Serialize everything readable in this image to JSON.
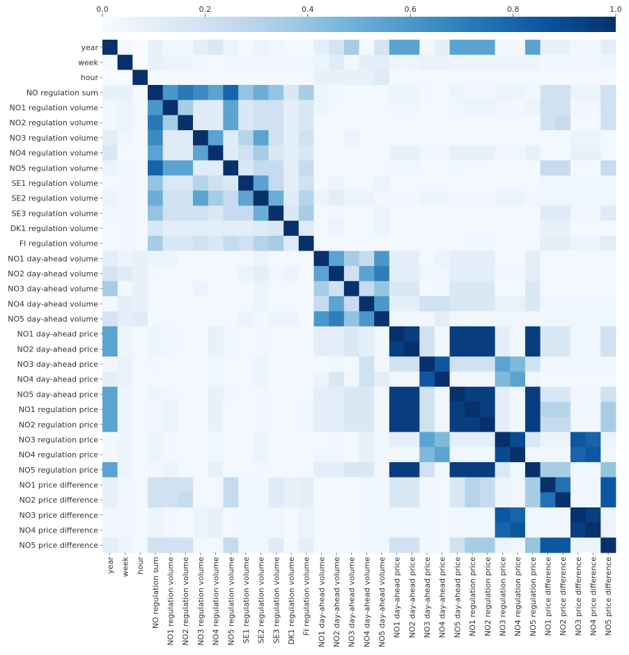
{
  "chart_data": {
    "type": "heatmap",
    "title": "",
    "xlabel": "",
    "ylabel": "",
    "labels": [
      "year",
      "week",
      "hour",
      "NO regulation sum",
      "NO1 regulation volume",
      "NO2 regulation volume",
      "NO3 regulation volume",
      "NO4 regulation volume",
      "NO5 regulation volume",
      "SE1 regulation volume",
      "SE2 regulation volume",
      "SE3 regulation volume",
      "DK1 regulation volume",
      "FI regulation volume",
      "NO1 day-ahead volume",
      "NO2 day-ahead volume",
      "NO3 day-ahead volume",
      "NO4 day-ahead volume",
      "NO5 day-ahead volume",
      "NO1 day-ahead price",
      "NO2 day-ahead price",
      "NO3 day-ahead price",
      "NO4 day-ahead price",
      "NO5 day-ahead price",
      "NO1 regulation price",
      "NO2 regulation price",
      "NO3 regulation price",
      "NO4 regulation price",
      "NO5 regulation price",
      "NO1 price difference",
      "NO2 price difference",
      "NO3 price difference",
      "NO4 price difference",
      "NO5 price difference"
    ],
    "colorbar": {
      "range": [
        0.0,
        1.0
      ],
      "ticks": [
        "0.0",
        "0.2",
        "0.4",
        "0.6",
        "0.8",
        "1.0"
      ],
      "colors": [
        "#f7fbff",
        "#deebf7",
        "#c6dbef",
        "#9ecae1",
        "#6baed6",
        "#4292c6",
        "#2171b5",
        "#08519c",
        "#08306b"
      ]
    },
    "values": [
      [
        1.0,
        0.02,
        0.0,
        0.08,
        0.03,
        0.03,
        0.1,
        0.15,
        0.06,
        0.02,
        0.06,
        0.04,
        0.02,
        0.02,
        0.1,
        0.18,
        0.35,
        0.02,
        0.18,
        0.55,
        0.55,
        0.03,
        0.1,
        0.55,
        0.55,
        0.55,
        0.03,
        0.03,
        0.55,
        0.08,
        0.08,
        0.03,
        0.03,
        0.1
      ],
      [
        0.02,
        1.0,
        0.0,
        0.08,
        0.06,
        0.06,
        0.04,
        0.02,
        0.04,
        0.03,
        0.03,
        0.03,
        0.03,
        0.03,
        0.05,
        0.12,
        0.03,
        0.1,
        0.1,
        0.05,
        0.05,
        0.07,
        0.07,
        0.05,
        0.05,
        0.05,
        0.05,
        0.05,
        0.05,
        0.03,
        0.03,
        0.03,
        0.03,
        0.05
      ],
      [
        0.0,
        0.0,
        1.0,
        0.02,
        0.02,
        0.02,
        0.02,
        0.02,
        0.02,
        0.02,
        0.02,
        0.02,
        0.02,
        0.02,
        0.08,
        0.08,
        0.08,
        0.08,
        0.12,
        0.02,
        0.02,
        0.02,
        0.02,
        0.02,
        0.02,
        0.02,
        0.02,
        0.02,
        0.02,
        0.02,
        0.02,
        0.02,
        0.02,
        0.02
      ],
      [
        0.08,
        0.08,
        0.02,
        1.0,
        0.6,
        0.72,
        0.65,
        0.55,
        0.8,
        0.4,
        0.5,
        0.4,
        0.15,
        0.35,
        0.05,
        0.03,
        0.02,
        0.02,
        0.02,
        0.05,
        0.05,
        0.03,
        0.02,
        0.05,
        0.03,
        0.03,
        0.06,
        0.05,
        0.03,
        0.2,
        0.2,
        0.06,
        0.06,
        0.2
      ],
      [
        0.03,
        0.06,
        0.02,
        0.6,
        1.0,
        0.35,
        0.12,
        0.12,
        0.55,
        0.15,
        0.2,
        0.2,
        0.1,
        0.15,
        0.05,
        0.02,
        0.02,
        0.02,
        0.02,
        0.04,
        0.04,
        0.02,
        0.02,
        0.04,
        0.06,
        0.06,
        0.03,
        0.03,
        0.06,
        0.2,
        0.2,
        0.03,
        0.03,
        0.2
      ],
      [
        0.03,
        0.06,
        0.02,
        0.72,
        0.35,
        1.0,
        0.12,
        0.12,
        0.55,
        0.15,
        0.2,
        0.2,
        0.1,
        0.15,
        0.02,
        0.02,
        0.02,
        0.02,
        0.02,
        0.02,
        0.02,
        0.02,
        0.02,
        0.02,
        0.02,
        0.02,
        0.02,
        0.02,
        0.02,
        0.2,
        0.25,
        0.02,
        0.02,
        0.2
      ],
      [
        0.1,
        0.04,
        0.02,
        0.65,
        0.12,
        0.12,
        1.0,
        0.55,
        0.12,
        0.3,
        0.55,
        0.2,
        0.1,
        0.2,
        0.02,
        0.02,
        0.06,
        0.02,
        0.02,
        0.02,
        0.02,
        0.02,
        0.02,
        0.02,
        0.02,
        0.02,
        0.02,
        0.02,
        0.02,
        0.02,
        0.02,
        0.06,
        0.06,
        0.02
      ],
      [
        0.15,
        0.02,
        0.02,
        0.55,
        0.12,
        0.12,
        0.55,
        1.0,
        0.12,
        0.2,
        0.35,
        0.15,
        0.1,
        0.15,
        0.02,
        0.02,
        0.02,
        0.02,
        0.02,
        0.08,
        0.08,
        0.04,
        0.04,
        0.08,
        0.08,
        0.08,
        0.04,
        0.04,
        0.08,
        0.02,
        0.02,
        0.08,
        0.08,
        0.02
      ],
      [
        0.06,
        0.04,
        0.02,
        0.8,
        0.55,
        0.55,
        0.12,
        0.12,
        1.0,
        0.15,
        0.25,
        0.25,
        0.1,
        0.25,
        0.02,
        0.02,
        0.02,
        0.02,
        0.02,
        0.04,
        0.04,
        0.02,
        0.02,
        0.04,
        0.02,
        0.02,
        0.02,
        0.02,
        0.02,
        0.25,
        0.25,
        0.02,
        0.02,
        0.25
      ],
      [
        0.02,
        0.03,
        0.02,
        0.4,
        0.15,
        0.15,
        0.3,
        0.2,
        0.15,
        1.0,
        0.55,
        0.25,
        0.1,
        0.2,
        0.02,
        0.06,
        0.02,
        0.02,
        0.06,
        0.02,
        0.02,
        0.02,
        0.02,
        0.02,
        0.02,
        0.02,
        0.02,
        0.02,
        0.02,
        0.04,
        0.04,
        0.04,
        0.04,
        0.04
      ],
      [
        0.06,
        0.03,
        0.02,
        0.5,
        0.2,
        0.2,
        0.55,
        0.35,
        0.25,
        0.55,
        1.0,
        0.5,
        0.12,
        0.3,
        0.06,
        0.1,
        0.06,
        0.06,
        0.03,
        0.03,
        0.03,
        0.05,
        0.05,
        0.03,
        0.03,
        0.03,
        0.06,
        0.06,
        0.03,
        0.04,
        0.04,
        0.04,
        0.04,
        0.04
      ],
      [
        0.04,
        0.03,
        0.02,
        0.4,
        0.2,
        0.2,
        0.2,
        0.15,
        0.25,
        0.25,
        0.5,
        1.0,
        0.15,
        0.35,
        0.02,
        0.04,
        0.02,
        0.02,
        0.06,
        0.02,
        0.02,
        0.02,
        0.02,
        0.02,
        0.02,
        0.02,
        0.02,
        0.02,
        0.02,
        0.12,
        0.12,
        0.04,
        0.04,
        0.12
      ],
      [
        0.02,
        0.03,
        0.02,
        0.15,
        0.1,
        0.1,
        0.1,
        0.1,
        0.1,
        0.1,
        0.12,
        0.15,
        1.0,
        0.12,
        0.02,
        0.06,
        0.02,
        0.02,
        0.06,
        0.02,
        0.02,
        0.02,
        0.02,
        0.02,
        0.02,
        0.02,
        0.02,
        0.02,
        0.02,
        0.08,
        0.08,
        0.02,
        0.02,
        0.02
      ],
      [
        0.02,
        0.03,
        0.02,
        0.35,
        0.15,
        0.15,
        0.2,
        0.15,
        0.25,
        0.2,
        0.3,
        0.35,
        0.12,
        1.0,
        0.02,
        0.02,
        0.02,
        0.02,
        0.02,
        0.02,
        0.02,
        0.02,
        0.02,
        0.02,
        0.04,
        0.04,
        0.02,
        0.02,
        0.02,
        0.1,
        0.1,
        0.06,
        0.06,
        0.1
      ],
      [
        0.1,
        0.05,
        0.08,
        0.05,
        0.05,
        0.02,
        0.02,
        0.02,
        0.02,
        0.02,
        0.06,
        0.02,
        0.02,
        0.02,
        1.0,
        0.55,
        0.35,
        0.25,
        0.6,
        0.1,
        0.1,
        0.02,
        0.06,
        0.1,
        0.1,
        0.1,
        0.02,
        0.02,
        0.1,
        0.02,
        0.02,
        0.02,
        0.02,
        0.02
      ],
      [
        0.18,
        0.12,
        0.08,
        0.03,
        0.02,
        0.02,
        0.02,
        0.02,
        0.02,
        0.06,
        0.1,
        0.04,
        0.06,
        0.02,
        0.55,
        1.0,
        0.2,
        0.55,
        0.7,
        0.1,
        0.1,
        0.04,
        0.04,
        0.1,
        0.1,
        0.1,
        0.04,
        0.04,
        0.1,
        0.02,
        0.02,
        0.02,
        0.02,
        0.02
      ],
      [
        0.35,
        0.03,
        0.08,
        0.02,
        0.02,
        0.02,
        0.06,
        0.02,
        0.02,
        0.02,
        0.06,
        0.02,
        0.02,
        0.02,
        0.35,
        0.2,
        1.0,
        0.25,
        0.4,
        0.15,
        0.15,
        0.02,
        0.04,
        0.15,
        0.15,
        0.15,
        0.02,
        0.02,
        0.15,
        0.02,
        0.02,
        0.02,
        0.02,
        0.02
      ],
      [
        0.02,
        0.1,
        0.08,
        0.02,
        0.02,
        0.02,
        0.02,
        0.02,
        0.02,
        0.02,
        0.06,
        0.02,
        0.02,
        0.02,
        0.25,
        0.55,
        0.25,
        1.0,
        0.6,
        0.1,
        0.1,
        0.2,
        0.2,
        0.15,
        0.15,
        0.15,
        0.08,
        0.08,
        0.15,
        0.04,
        0.04,
        0.04,
        0.04,
        0.04
      ],
      [
        0.18,
        0.1,
        0.12,
        0.02,
        0.02,
        0.02,
        0.02,
        0.02,
        0.02,
        0.06,
        0.03,
        0.06,
        0.06,
        0.02,
        0.6,
        0.7,
        0.4,
        0.6,
        1.0,
        0.04,
        0.04,
        0.04,
        0.1,
        0.04,
        0.04,
        0.04,
        0.04,
        0.04,
        0.04,
        0.04,
        0.04,
        0.04,
        0.04,
        0.04
      ],
      [
        0.55,
        0.05,
        0.02,
        0.05,
        0.04,
        0.02,
        0.02,
        0.08,
        0.04,
        0.02,
        0.03,
        0.02,
        0.02,
        0.02,
        0.1,
        0.1,
        0.15,
        0.1,
        0.04,
        1.0,
        0.95,
        0.2,
        0.04,
        0.95,
        0.95,
        0.95,
        0.1,
        0.04,
        0.95,
        0.15,
        0.15,
        0.04,
        0.04,
        0.2
      ],
      [
        0.55,
        0.05,
        0.02,
        0.05,
        0.04,
        0.02,
        0.02,
        0.08,
        0.04,
        0.02,
        0.03,
        0.02,
        0.02,
        0.02,
        0.1,
        0.1,
        0.15,
        0.1,
        0.04,
        0.95,
        1.0,
        0.2,
        0.04,
        0.95,
        0.95,
        0.95,
        0.1,
        0.04,
        0.95,
        0.15,
        0.15,
        0.04,
        0.04,
        0.2
      ],
      [
        0.03,
        0.07,
        0.02,
        0.03,
        0.02,
        0.02,
        0.02,
        0.04,
        0.02,
        0.02,
        0.05,
        0.02,
        0.02,
        0.02,
        0.02,
        0.04,
        0.02,
        0.2,
        0.04,
        0.2,
        0.2,
        1.0,
        0.85,
        0.2,
        0.2,
        0.2,
        0.55,
        0.45,
        0.2,
        0.04,
        0.04,
        0.04,
        0.04,
        0.04
      ],
      [
        0.1,
        0.07,
        0.02,
        0.02,
        0.02,
        0.02,
        0.02,
        0.04,
        0.02,
        0.02,
        0.05,
        0.02,
        0.02,
        0.02,
        0.06,
        0.15,
        0.04,
        0.2,
        0.1,
        0.04,
        0.04,
        0.85,
        1.0,
        0.04,
        0.04,
        0.04,
        0.45,
        0.55,
        0.04,
        0.02,
        0.02,
        0.02,
        0.02,
        0.02
      ],
      [
        0.55,
        0.05,
        0.02,
        0.05,
        0.04,
        0.02,
        0.02,
        0.08,
        0.04,
        0.02,
        0.03,
        0.02,
        0.02,
        0.02,
        0.1,
        0.1,
        0.15,
        0.15,
        0.04,
        0.95,
        0.95,
        0.2,
        0.04,
        1.0,
        0.95,
        0.95,
        0.1,
        0.04,
        0.95,
        0.15,
        0.15,
        0.04,
        0.04,
        0.2
      ],
      [
        0.55,
        0.05,
        0.02,
        0.03,
        0.06,
        0.02,
        0.02,
        0.08,
        0.02,
        0.02,
        0.03,
        0.02,
        0.02,
        0.04,
        0.1,
        0.1,
        0.15,
        0.15,
        0.04,
        0.95,
        0.95,
        0.2,
        0.04,
        0.95,
        1.0,
        0.95,
        0.1,
        0.04,
        0.95,
        0.3,
        0.3,
        0.04,
        0.04,
        0.35
      ],
      [
        0.55,
        0.05,
        0.02,
        0.03,
        0.06,
        0.02,
        0.02,
        0.08,
        0.02,
        0.02,
        0.03,
        0.02,
        0.02,
        0.04,
        0.1,
        0.1,
        0.15,
        0.15,
        0.04,
        0.95,
        0.95,
        0.2,
        0.04,
        0.95,
        0.95,
        1.0,
        0.1,
        0.04,
        0.95,
        0.25,
        0.25,
        0.04,
        0.04,
        0.35
      ],
      [
        0.03,
        0.05,
        0.02,
        0.06,
        0.03,
        0.02,
        0.02,
        0.04,
        0.02,
        0.02,
        0.06,
        0.02,
        0.02,
        0.02,
        0.02,
        0.04,
        0.02,
        0.08,
        0.04,
        0.1,
        0.1,
        0.55,
        0.45,
        0.1,
        0.1,
        0.1,
        1.0,
        0.9,
        0.15,
        0.06,
        0.06,
        0.85,
        0.8,
        0.06
      ],
      [
        0.03,
        0.05,
        0.02,
        0.05,
        0.03,
        0.02,
        0.02,
        0.04,
        0.02,
        0.02,
        0.06,
        0.02,
        0.02,
        0.02,
        0.04,
        0.04,
        0.02,
        0.08,
        0.04,
        0.04,
        0.04,
        0.45,
        0.55,
        0.04,
        0.04,
        0.04,
        0.9,
        1.0,
        0.04,
        0.04,
        0.04,
        0.8,
        0.85,
        0.04
      ],
      [
        0.55,
        0.05,
        0.02,
        0.03,
        0.06,
        0.02,
        0.02,
        0.08,
        0.02,
        0.02,
        0.03,
        0.02,
        0.02,
        0.02,
        0.1,
        0.1,
        0.15,
        0.15,
        0.04,
        0.95,
        0.95,
        0.2,
        0.04,
        0.95,
        0.95,
        0.95,
        0.15,
        0.04,
        1.0,
        0.35,
        0.35,
        0.04,
        0.04,
        0.4
      ],
      [
        0.08,
        0.03,
        0.02,
        0.2,
        0.2,
        0.2,
        0.02,
        0.02,
        0.25,
        0.04,
        0.04,
        0.12,
        0.08,
        0.1,
        0.02,
        0.02,
        0.02,
        0.04,
        0.04,
        0.15,
        0.15,
        0.04,
        0.02,
        0.15,
        0.3,
        0.25,
        0.06,
        0.04,
        0.35,
        1.0,
        0.75,
        0.04,
        0.04,
        0.85
      ],
      [
        0.08,
        0.03,
        0.02,
        0.2,
        0.2,
        0.25,
        0.02,
        0.02,
        0.25,
        0.04,
        0.04,
        0.12,
        0.08,
        0.1,
        0.02,
        0.02,
        0.02,
        0.04,
        0.04,
        0.15,
        0.15,
        0.04,
        0.02,
        0.15,
        0.3,
        0.25,
        0.06,
        0.04,
        0.35,
        0.75,
        1.0,
        0.04,
        0.04,
        0.85
      ],
      [
        0.03,
        0.03,
        0.02,
        0.06,
        0.03,
        0.02,
        0.06,
        0.08,
        0.02,
        0.04,
        0.04,
        0.04,
        0.02,
        0.06,
        0.02,
        0.02,
        0.02,
        0.04,
        0.04,
        0.04,
        0.04,
        0.04,
        0.02,
        0.04,
        0.04,
        0.04,
        0.85,
        0.8,
        0.04,
        0.04,
        0.04,
        1.0,
        0.95,
        0.06
      ],
      [
        0.03,
        0.03,
        0.02,
        0.06,
        0.03,
        0.02,
        0.06,
        0.08,
        0.02,
        0.04,
        0.04,
        0.04,
        0.02,
        0.06,
        0.02,
        0.02,
        0.02,
        0.04,
        0.04,
        0.04,
        0.04,
        0.04,
        0.02,
        0.04,
        0.04,
        0.04,
        0.8,
        0.85,
        0.04,
        0.04,
        0.04,
        0.95,
        1.0,
        0.06
      ],
      [
        0.1,
        0.05,
        0.02,
        0.2,
        0.2,
        0.2,
        0.02,
        0.02,
        0.25,
        0.04,
        0.04,
        0.12,
        0.02,
        0.1,
        0.02,
        0.02,
        0.02,
        0.04,
        0.04,
        0.2,
        0.2,
        0.04,
        0.02,
        0.2,
        0.35,
        0.35,
        0.06,
        0.04,
        0.4,
        0.85,
        0.85,
        0.06,
        0.06,
        1.0
      ]
    ]
  }
}
